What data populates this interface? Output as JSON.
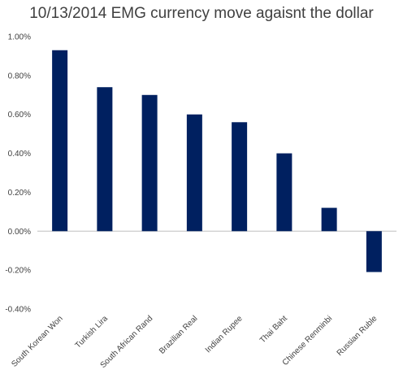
{
  "chart_data": {
    "type": "bar",
    "title": "10/13/2014 EMG currency move agaisnt the dollar",
    "xlabel": "",
    "ylabel": "",
    "categories": [
      "South Korean Won",
      "Turkish Lira",
      "South African Rand",
      "Brazilian Real",
      "Indian Rupee",
      "Thai Baht",
      "Chinese Renminbi",
      "Russian Ruble"
    ],
    "values": [
      0.93,
      0.74,
      0.7,
      0.6,
      0.56,
      0.4,
      0.12,
      -0.21
    ],
    "value_format": "percent",
    "ylim": [
      -0.4,
      1.0
    ],
    "yticks": [
      1.0,
      0.8,
      0.6,
      0.4,
      0.2,
      0.0,
      -0.2,
      -0.4
    ],
    "ytick_labels": [
      "1.00%",
      "0.80%",
      "0.60%",
      "0.40%",
      "0.20%",
      "0.00%",
      "-0.20%",
      "-0.40%"
    ],
    "bar_color": "#002060",
    "zero_line_color": "#bfbfbf",
    "grid": false,
    "legend": "none"
  }
}
